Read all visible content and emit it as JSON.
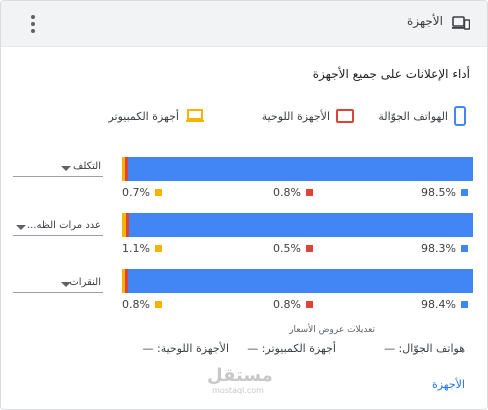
{
  "header": {
    "title": "الأجهزة",
    "icon": "devices-icon",
    "menu_icon": "more-vert-icon"
  },
  "subtitle": "أداء الإعلانات على جميع الأجهزة",
  "legend": [
    {
      "label": "الهواتف الجوّالة",
      "icon": "mobile-icon",
      "color": "#4285f4"
    },
    {
      "label": "الأجهزة اللوحية",
      "icon": "tablet-icon",
      "color": "#db4437"
    },
    {
      "label": "أجهزة الكمبيوتر",
      "icon": "computer-icon",
      "color": "#f4b400"
    }
  ],
  "colors": {
    "mobile": "#4285f4",
    "tablet": "#db4437",
    "computer": "#f4b400"
  },
  "rows": [
    {
      "metric": "التكلف",
      "mobile": "98.5%",
      "tablet": "0.8%",
      "computer": "0.7%",
      "mobile_value": 98.5,
      "tablet_value": 0.8,
      "computer_value": 0.7
    },
    {
      "metric": "عدد مرات الظه...",
      "mobile": "98.3%",
      "tablet": "0.5%",
      "computer": "1.1%",
      "mobile_value": 98.3,
      "tablet_value": 0.5,
      "computer_value": 1.1
    },
    {
      "metric": "النقرات",
      "mobile": "98.4%",
      "tablet": "0.8%",
      "computer": "0.8%",
      "mobile_value": 98.4,
      "tablet_value": 0.8,
      "computer_value": 0.8
    }
  ],
  "bid_adjustments": {
    "title": "تعديلات عروض الأسعار",
    "mobile": "هواتف الجوّال: —",
    "computers": "أجهزة الكمبيوتر: —",
    "tablets": "الأجهزة اللوحية: —"
  },
  "footer": {
    "link": "الأجهزة"
  },
  "watermark": {
    "main": "مستقل",
    "sub": "mostaql.com"
  }
}
